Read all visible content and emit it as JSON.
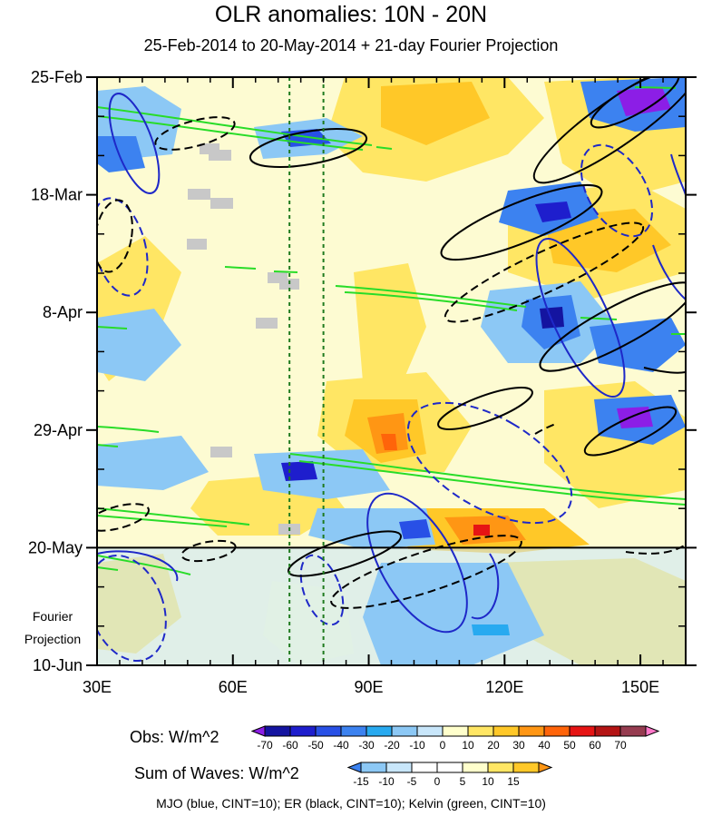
{
  "chart_data": {
    "type": "heatmap",
    "title": "OLR anomalies: 10N - 20N",
    "subtitle": "25-Feb-2014 to 20-May-2014 + 21-day Fourier Projection",
    "x_axis": {
      "ticks": [
        "30E",
        "60E",
        "90E",
        "120E",
        "150E"
      ],
      "tick_values": [
        30,
        60,
        90,
        120,
        150
      ],
      "range": [
        30,
        160
      ]
    },
    "y_axis": {
      "ticks": [
        "25-Feb",
        "18-Mar",
        "8-Apr",
        "29-Apr",
        "20-May",
        "10-Jun"
      ],
      "tick_days": [
        0,
        21,
        42,
        63,
        84,
        105
      ],
      "range_days": [
        0,
        105
      ],
      "reversed": true
    },
    "projection_label": [
      "Fourier",
      "Projection"
    ],
    "projection_start": "20-May",
    "reference_lines_lon": [
      72.5,
      80
    ],
    "obs_legend": {
      "title": "Obs: W/m^2",
      "labels": [
        "-70",
        "-60",
        "-50",
        "-40",
        "-30",
        "-20",
        "-10",
        "0",
        "10",
        "20",
        "30",
        "40",
        "50",
        "60",
        "70"
      ],
      "colors": [
        "#8c1ee6",
        "#1414a0",
        "#1e1ecd",
        "#2850e6",
        "#3c82f0",
        "#28aaf0",
        "#8cc8f5",
        "#c8e6fa",
        "#ffffcc",
        "#ffe664",
        "#ffc828",
        "#ff9614",
        "#ff640a",
        "#e61414",
        "#b41414",
        "#963c50",
        "#ff78c8"
      ]
    },
    "waves_legend": {
      "title": "Sum of Waves: W/m^2",
      "labels": [
        "-15",
        "-10",
        "-5",
        "0",
        "5",
        "10",
        "15"
      ],
      "colors": [
        "#3c82f0",
        "#8cc8f5",
        "#c8e6fa",
        "#ffffff",
        "#ffffff",
        "#ffffcc",
        "#ffe664",
        "#ffc828",
        "#ff9614"
      ]
    },
    "footer": "MJO (blue, CINT=10); ER (black, CINT=10); Kelvin (green, CINT=10)",
    "series_colors": {
      "mjo": "#1e28c8",
      "er": "#000000",
      "kelvin": "#28dc28",
      "ref_line": "#1e7a1e"
    }
  }
}
